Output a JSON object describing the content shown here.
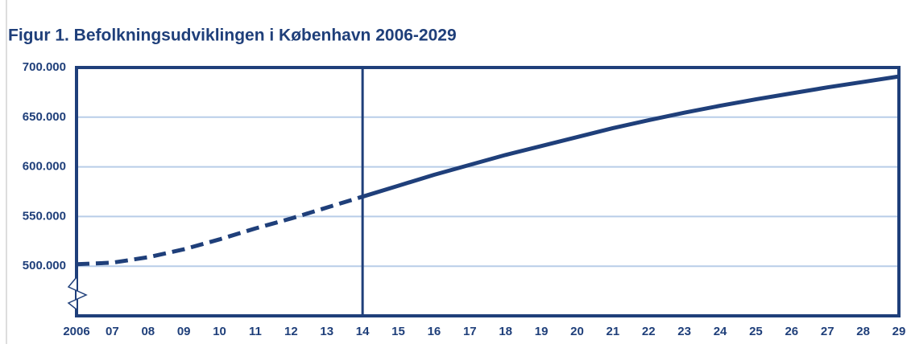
{
  "chart_data": {
    "type": "line",
    "title": "Figur 1. Befolkningsudviklingen i København 2006-2029",
    "categories": [
      "2006",
      "07",
      "08",
      "09",
      "10",
      "11",
      "12",
      "13",
      "14",
      "15",
      "16",
      "17",
      "18",
      "19",
      "20",
      "21",
      "22",
      "23",
      "24",
      "25",
      "26",
      "27",
      "28",
      "29"
    ],
    "series": [
      {
        "color": "#1f3f7a",
        "dash": true,
        "values": [
          502000,
          503500,
          509000,
          517000,
          527000,
          538000,
          548000,
          559000,
          570000,
          null,
          null,
          null,
          null,
          null,
          null,
          null,
          null,
          null,
          null,
          null,
          null,
          null,
          null,
          null
        ]
      },
      {
        "color": "#1f3f7a",
        "dash": false,
        "values": [
          null,
          null,
          null,
          null,
          null,
          null,
          null,
          null,
          570000,
          581000,
          592000,
          602000,
          612000,
          621000,
          630000,
          639000,
          647000,
          654500,
          661500,
          668000,
          674000,
          680000,
          685500,
          691000
        ]
      }
    ],
    "ylim": [
      450000,
      700000
    ],
    "yticks": [
      {
        "value": 500000,
        "label": "500.000"
      },
      {
        "value": 550000,
        "label": "550.000"
      },
      {
        "value": 600000,
        "label": "600.000"
      },
      {
        "value": 650000,
        "label": "650.000"
      },
      {
        "value": 700000,
        "label": "700.000"
      }
    ],
    "vline": "14",
    "grid": true
  }
}
